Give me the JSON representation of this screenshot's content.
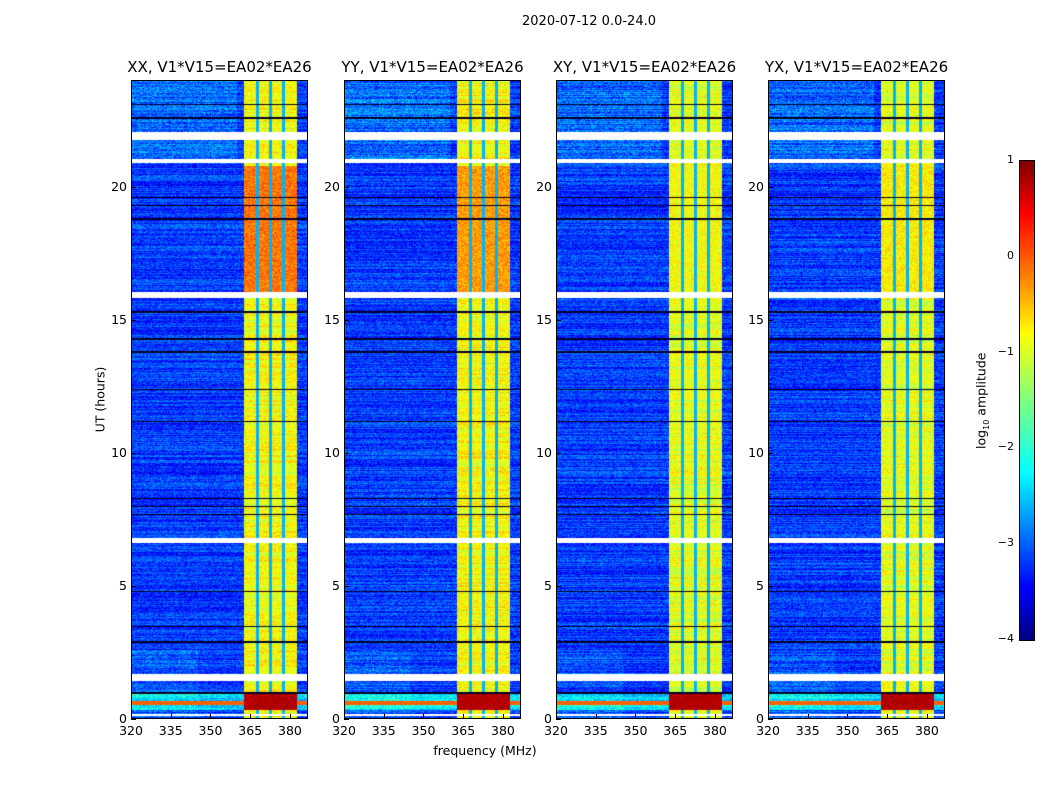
{
  "chart_data": {
    "type": "heatmap",
    "title": "2020-07-12 0.0-24.0",
    "panels": [
      {
        "title": "XX, V1*V15=EA02*EA26",
        "band_level": -0.9,
        "late_level": -0.2
      },
      {
        "title": "YY, V1*V15=EA02*EA26",
        "band_level": -0.9,
        "late_level": -0.4
      },
      {
        "title": "XY, V1*V15=EA02*EA26",
        "band_level": -1.0,
        "late_level": -0.9
      },
      {
        "title": "YX, V1*V15=EA02*EA26",
        "band_level": -1.0,
        "late_level": -0.8
      }
    ],
    "xlabel": "frequency (MHz)",
    "ylabel": "UT (hours)",
    "xlim": [
      320,
      386.8
    ],
    "ylim": [
      0,
      24
    ],
    "xticks": [
      "320",
      "335",
      "350",
      "365",
      "380"
    ],
    "xtick_values": [
      320,
      335,
      350,
      365,
      380
    ],
    "yticks": [
      "0",
      "5",
      "10",
      "15",
      "20"
    ],
    "ytick_values": [
      0,
      5,
      10,
      15,
      20
    ],
    "colorbar": {
      "label_prefix": "log",
      "label_sub": "10",
      "label_suffix": "amplitude",
      "range": [
        -4,
        1
      ],
      "ticks": [
        "1",
        "0",
        "−1",
        "−2",
        "−3",
        "−4"
      ],
      "tick_values": [
        1,
        0,
        -1,
        -2,
        -3,
        -4
      ],
      "colormap": "jet"
    },
    "features": {
      "background_level": -3.1,
      "rfi_band_mhz": [
        362.3,
        382.6
      ],
      "subband_edges_mhz": [
        367.4,
        372.4,
        377.5
      ],
      "strong_rfi_hours": [
        [
          0.35,
          0.95
        ]
      ],
      "flagged_hours": [
        [
          0.12,
          0.2
        ],
        [
          1.45,
          1.72
        ],
        [
          6.62,
          6.82
        ],
        [
          15.82,
          16.05
        ],
        [
          20.9,
          21.05
        ],
        [
          21.78,
          22.05
        ]
      ],
      "dropout_hours": [
        1.0,
        2.9,
        3.5,
        4.8,
        7.7,
        8.0,
        8.3,
        11.2,
        12.4,
        13.8,
        14.3,
        15.3,
        18.8,
        19.3,
        19.6,
        22.6,
        23.1
      ]
    }
  }
}
